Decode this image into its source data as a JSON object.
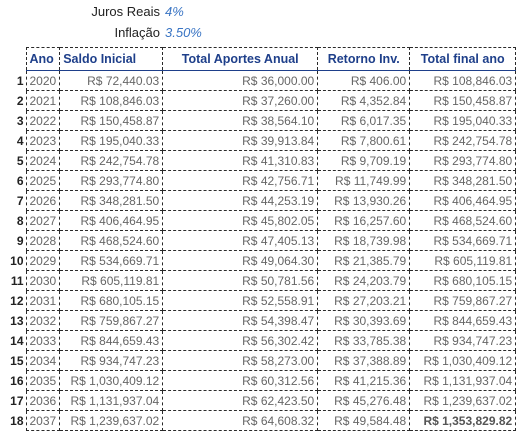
{
  "params": {
    "juros_label": "Juros Reais",
    "juros_value": "4%",
    "inflacao_label": "Inflação",
    "inflacao_value": "3.50%"
  },
  "table": {
    "headers": [
      "Ano",
      "Saldo Inicial",
      "Total Aportes Anual",
      "Retorno Inv.",
      "Total final ano"
    ],
    "rows": [
      {
        "n": "1",
        "ano": "2020",
        "saldo": "R$ 72,440.03",
        "aportes": "R$ 36,000.00",
        "retorno": "R$ 406.00",
        "final": "R$ 108,846.03"
      },
      {
        "n": "2",
        "ano": "2021",
        "saldo": "R$ 108,846.03",
        "aportes": "R$ 37,260.00",
        "retorno": "R$ 4,352.84",
        "final": "R$ 150,458.87"
      },
      {
        "n": "3",
        "ano": "2022",
        "saldo": "R$ 150,458.87",
        "aportes": "R$ 38,564.10",
        "retorno": "R$ 6,017.35",
        "final": "R$ 195,040.33"
      },
      {
        "n": "4",
        "ano": "2023",
        "saldo": "R$ 195,040.33",
        "aportes": "R$ 39,913.84",
        "retorno": "R$ 7,800.61",
        "final": "R$ 242,754.78"
      },
      {
        "n": "5",
        "ano": "2024",
        "saldo": "R$ 242,754.78",
        "aportes": "R$ 41,310.83",
        "retorno": "R$ 9,709.19",
        "final": "R$ 293,774.80"
      },
      {
        "n": "6",
        "ano": "2025",
        "saldo": "R$ 293,774.80",
        "aportes": "R$ 42,756.71",
        "retorno": "R$ 11,749.99",
        "final": "R$ 348,281.50"
      },
      {
        "n": "7",
        "ano": "2026",
        "saldo": "R$ 348,281.50",
        "aportes": "R$ 44,253.19",
        "retorno": "R$ 13,930.26",
        "final": "R$ 406,464.95"
      },
      {
        "n": "8",
        "ano": "2027",
        "saldo": "R$ 406,464.95",
        "aportes": "R$ 45,802.05",
        "retorno": "R$ 16,257.60",
        "final": "R$ 468,524.60"
      },
      {
        "n": "9",
        "ano": "2028",
        "saldo": "R$ 468,524.60",
        "aportes": "R$ 47,405.13",
        "retorno": "R$ 18,739.98",
        "final": "R$ 534,669.71"
      },
      {
        "n": "10",
        "ano": "2029",
        "saldo": "R$ 534,669.71",
        "aportes": "R$ 49,064.30",
        "retorno": "R$ 21,385.79",
        "final": "R$ 605,119.81"
      },
      {
        "n": "11",
        "ano": "2030",
        "saldo": "R$ 605,119.81",
        "aportes": "R$ 50,781.56",
        "retorno": "R$ 24,203.79",
        "final": "R$ 680,105.15"
      },
      {
        "n": "12",
        "ano": "2031",
        "saldo": "R$ 680,105.15",
        "aportes": "R$ 52,558.91",
        "retorno": "R$ 27,203.21",
        "final": "R$ 759,867.27"
      },
      {
        "n": "13",
        "ano": "2032",
        "saldo": "R$ 759,867.27",
        "aportes": "R$ 54,398.47",
        "retorno": "R$ 30,393.69",
        "final": "R$ 844,659.43"
      },
      {
        "n": "14",
        "ano": "2033",
        "saldo": "R$ 844,659.43",
        "aportes": "R$ 56,302.42",
        "retorno": "R$ 33,785.38",
        "final": "R$ 934,747.23"
      },
      {
        "n": "15",
        "ano": "2034",
        "saldo": "R$ 934,747.23",
        "aportes": "R$ 58,273.00",
        "retorno": "R$ 37,388.89",
        "final": "R$ 1,030,409.12"
      },
      {
        "n": "16",
        "ano": "2035",
        "saldo": "R$ 1,030,409.12",
        "aportes": "R$ 60,312.56",
        "retorno": "R$ 41,215.36",
        "final": "R$ 1,131,937.04"
      },
      {
        "n": "17",
        "ano": "2036",
        "saldo": "R$ 1,131,937.04",
        "aportes": "R$ 62,423.50",
        "retorno": "R$ 45,276.48",
        "final": "R$ 1,239,637.02"
      },
      {
        "n": "18",
        "ano": "2037",
        "saldo": "R$ 1,239,637.02",
        "aportes": "R$ 64,608.32",
        "retorno": "R$ 49,584.48",
        "final": "R$ 1,353,829.82"
      }
    ]
  }
}
